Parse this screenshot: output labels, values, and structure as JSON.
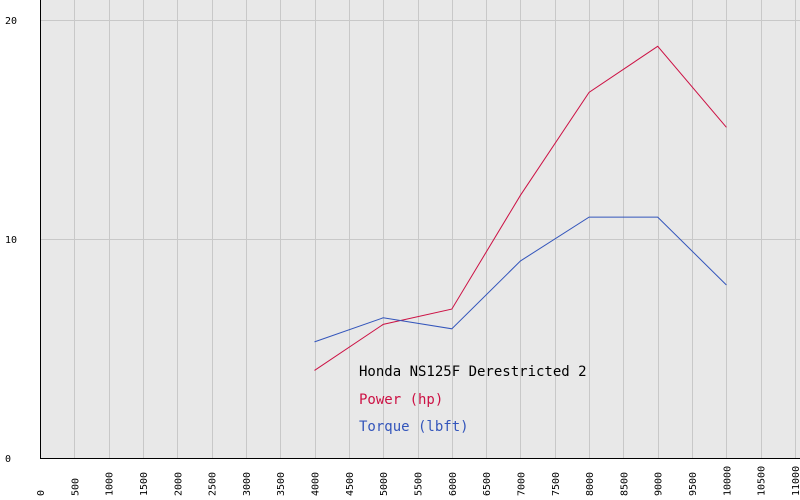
{
  "chart_data": {
    "type": "line",
    "title": "Honda NS125F Derestricted 2",
    "xlabel": "",
    "ylabel": "",
    "xlim": [
      0,
      11000
    ],
    "ylim": [
      0,
      20
    ],
    "x_ticks": [
      0,
      500,
      1000,
      1500,
      2000,
      2500,
      3000,
      3500,
      4000,
      4500,
      5000,
      5500,
      6000,
      6500,
      7000,
      7500,
      8000,
      8500,
      9000,
      9500,
      10000,
      10500,
      11000
    ],
    "y_ticks": [
      0,
      10,
      20
    ],
    "grid": true,
    "legend_position": "bottom-center",
    "colors": {
      "background": "#e8e8e8",
      "grid": "#c8c8c8",
      "axis": "#000000"
    },
    "series": [
      {
        "name": "Power (hp)",
        "color": "#cc1144",
        "x": [
          4000,
          5000,
          6000,
          7000,
          8000,
          9000,
          10000
        ],
        "y": [
          4.0,
          6.1,
          6.8,
          12.0,
          16.7,
          18.8,
          15.1
        ]
      },
      {
        "name": "Torque (lbft)",
        "color": "#3355bb",
        "x": [
          4000,
          5000,
          6000,
          7000,
          8000,
          9000,
          10000
        ],
        "y": [
          5.3,
          6.4,
          5.9,
          9.0,
          11.0,
          11.0,
          7.9
        ]
      }
    ]
  }
}
